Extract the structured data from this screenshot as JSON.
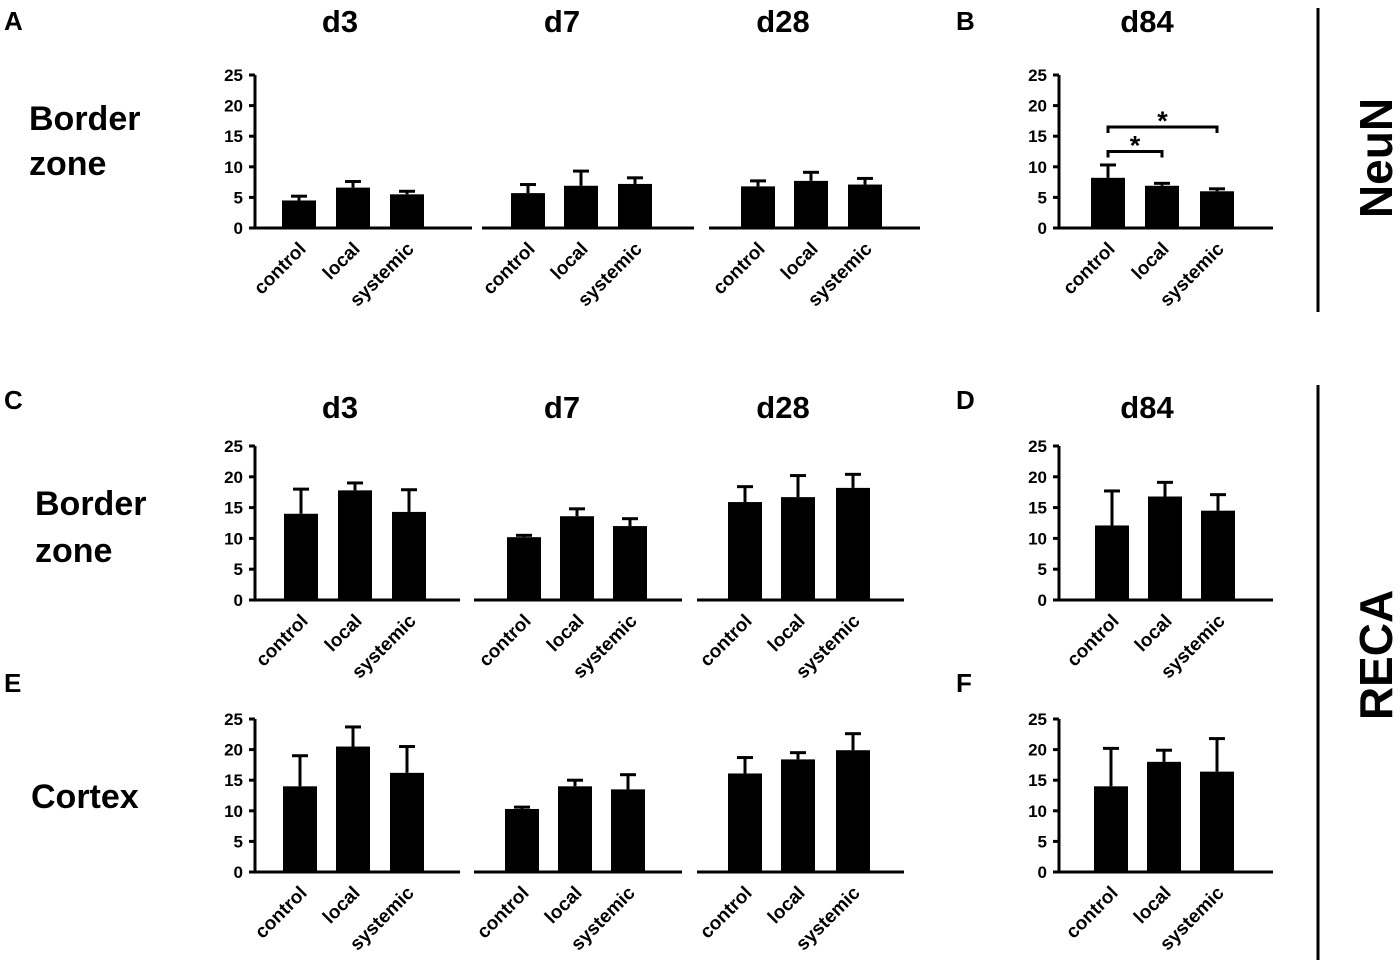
{
  "markers": {
    "neun": "NeuN",
    "reca": "RECA"
  },
  "panel_letters": {
    "A": "A",
    "B": "B",
    "C": "C",
    "D": "D",
    "E": "E",
    "F": "F"
  },
  "row_labels": {
    "neun_border_line1": "Border",
    "neun_border_line2": "zone",
    "reca_border_line1": "Border",
    "reca_border_line2": "zone",
    "reca_cortex": "Cortex"
  },
  "day_titles": {
    "neun_d3": "d3",
    "neun_d7": "d7",
    "neun_d28": "d28",
    "neun_d84": "d84",
    "reca_d3": "d3",
    "reca_d7": "d7",
    "reca_d28": "d28",
    "reca_d84": "d84"
  },
  "significance": {
    "star1": "*",
    "star2": "*"
  },
  "chart_data": [
    {
      "id": "neun_border_d3",
      "type": "bar",
      "title": "d3",
      "row": "Border zone",
      "marker": "NeuN",
      "categories": [
        "control",
        "local",
        "systemic"
      ],
      "values": [
        4.5,
        6.6,
        5.5
      ],
      "errors": [
        0.7,
        1.0,
        0.5
      ],
      "yticks": [
        "0",
        "5",
        "10",
        "15",
        "20",
        "25"
      ],
      "ylim": [
        0,
        25
      ]
    },
    {
      "id": "neun_border_d7",
      "type": "bar",
      "title": "d7",
      "row": "Border zone",
      "marker": "NeuN",
      "categories": [
        "control",
        "local",
        "systemic"
      ],
      "values": [
        5.7,
        6.9,
        7.2
      ],
      "errors": [
        1.4,
        2.4,
        1.0
      ],
      "yticks": [],
      "ylim": [
        0,
        25
      ]
    },
    {
      "id": "neun_border_d28",
      "type": "bar",
      "title": "d28",
      "row": "Border zone",
      "marker": "NeuN",
      "categories": [
        "control",
        "local",
        "systemic"
      ],
      "values": [
        6.8,
        7.7,
        7.1
      ],
      "errors": [
        0.9,
        1.4,
        1.0
      ],
      "yticks": [],
      "ylim": [
        0,
        25
      ]
    },
    {
      "id": "neun_border_d84",
      "type": "bar",
      "title": "d84",
      "row": "Border zone",
      "marker": "NeuN",
      "categories": [
        "control",
        "local",
        "systemic"
      ],
      "values": [
        8.2,
        6.9,
        6.0
      ],
      "errors": [
        2.1,
        0.4,
        0.4
      ],
      "yticks": [
        "0",
        "5",
        "10",
        "15",
        "20",
        "25"
      ],
      "ylim": [
        0,
        25
      ],
      "significance": [
        {
          "from": 0,
          "to": 1,
          "y": 12.5,
          "label": "*"
        },
        {
          "from": 0,
          "to": 2,
          "y": 16.5,
          "label": "*"
        }
      ]
    },
    {
      "id": "reca_border_d3",
      "type": "bar",
      "title": "d3",
      "row": "Border zone",
      "marker": "RECA",
      "categories": [
        "control",
        "local",
        "systemic"
      ],
      "values": [
        14.0,
        17.8,
        14.3
      ],
      "errors": [
        4.0,
        1.2,
        3.6
      ],
      "yticks": [
        "0",
        "5",
        "10",
        "15",
        "20",
        "25"
      ],
      "ylim": [
        0,
        25
      ]
    },
    {
      "id": "reca_border_d7",
      "type": "bar",
      "title": "d7",
      "row": "Border zone",
      "marker": "RECA",
      "categories": [
        "control",
        "local",
        "systemic"
      ],
      "values": [
        10.2,
        13.6,
        12.0
      ],
      "errors": [
        0.3,
        1.2,
        1.2
      ],
      "yticks": [],
      "ylim": [
        0,
        25
      ]
    },
    {
      "id": "reca_border_d28",
      "type": "bar",
      "title": "d28",
      "row": "Border zone",
      "marker": "RECA",
      "categories": [
        "control",
        "local",
        "systemic"
      ],
      "values": [
        15.9,
        16.7,
        18.2
      ],
      "errors": [
        2.5,
        3.5,
        2.2
      ],
      "yticks": [],
      "ylim": [
        0,
        25
      ]
    },
    {
      "id": "reca_border_d84",
      "type": "bar",
      "title": "d84",
      "row": "Border zone",
      "marker": "RECA",
      "categories": [
        "control",
        "local",
        "systemic"
      ],
      "values": [
        12.1,
        16.8,
        14.5
      ],
      "errors": [
        5.6,
        2.3,
        2.6
      ],
      "yticks": [
        "0",
        "5",
        "10",
        "15",
        "20",
        "25"
      ],
      "ylim": [
        0,
        25
      ]
    },
    {
      "id": "reca_cortex_d3",
      "type": "bar",
      "title": "d3",
      "row": "Cortex",
      "marker": "RECA",
      "categories": [
        "control",
        "local",
        "systemic"
      ],
      "values": [
        14.0,
        20.5,
        16.2
      ],
      "errors": [
        5.0,
        3.2,
        4.3
      ],
      "yticks": [
        "0",
        "5",
        "10",
        "15",
        "20",
        "25"
      ],
      "ylim": [
        0,
        25
      ]
    },
    {
      "id": "reca_cortex_d7",
      "type": "bar",
      "title": "d7",
      "row": "Cortex",
      "marker": "RECA",
      "categories": [
        "control",
        "local",
        "systemic"
      ],
      "values": [
        10.3,
        14.0,
        13.5
      ],
      "errors": [
        0.3,
        1.0,
        2.4
      ],
      "yticks": [],
      "ylim": [
        0,
        25
      ]
    },
    {
      "id": "reca_cortex_d28",
      "type": "bar",
      "title": "d28",
      "row": "Cortex",
      "marker": "RECA",
      "categories": [
        "control",
        "local",
        "systemic"
      ],
      "values": [
        16.1,
        18.4,
        19.9
      ],
      "errors": [
        2.6,
        1.1,
        2.7
      ],
      "yticks": [],
      "ylim": [
        0,
        25
      ]
    },
    {
      "id": "reca_cortex_d84",
      "type": "bar",
      "title": "d84",
      "row": "Cortex",
      "marker": "RECA",
      "categories": [
        "control",
        "local",
        "systemic"
      ],
      "values": [
        14.0,
        18.0,
        16.4
      ],
      "errors": [
        6.2,
        1.9,
        5.4
      ],
      "yticks": [
        "0",
        "5",
        "10",
        "15",
        "20",
        "25"
      ],
      "ylim": [
        0,
        25
      ]
    }
  ]
}
